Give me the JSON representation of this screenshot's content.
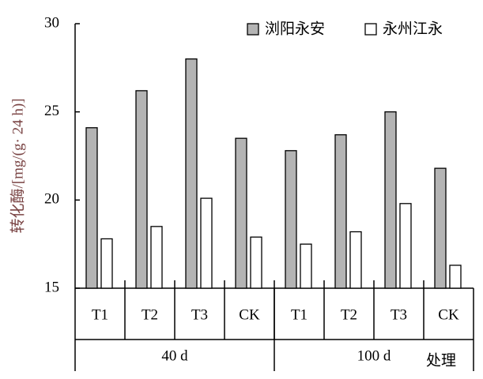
{
  "chart_data": {
    "type": "bar",
    "y_label": "转化酶/[mg/(g· 24 h)]",
    "x_label": "处理",
    "categories": [
      "T1",
      "T2",
      "T3",
      "CK",
      "T1",
      "T2",
      "T3",
      "CK"
    ],
    "groups": [
      "40 d",
      "100 d"
    ],
    "series": [
      {
        "name": "浏阳永安",
        "color": "#b4b4b4",
        "values": [
          24.1,
          26.2,
          28.0,
          23.5,
          22.8,
          23.7,
          25.0,
          21.8
        ]
      },
      {
        "name": "永州江永",
        "color": "#ffffff",
        "values": [
          17.8,
          18.5,
          20.1,
          17.9,
          17.5,
          18.2,
          19.8,
          16.3
        ]
      }
    ],
    "ylim": [
      15,
      30
    ],
    "yticks": [
      15,
      20,
      25,
      30
    ],
    "legend": "top-right"
  }
}
